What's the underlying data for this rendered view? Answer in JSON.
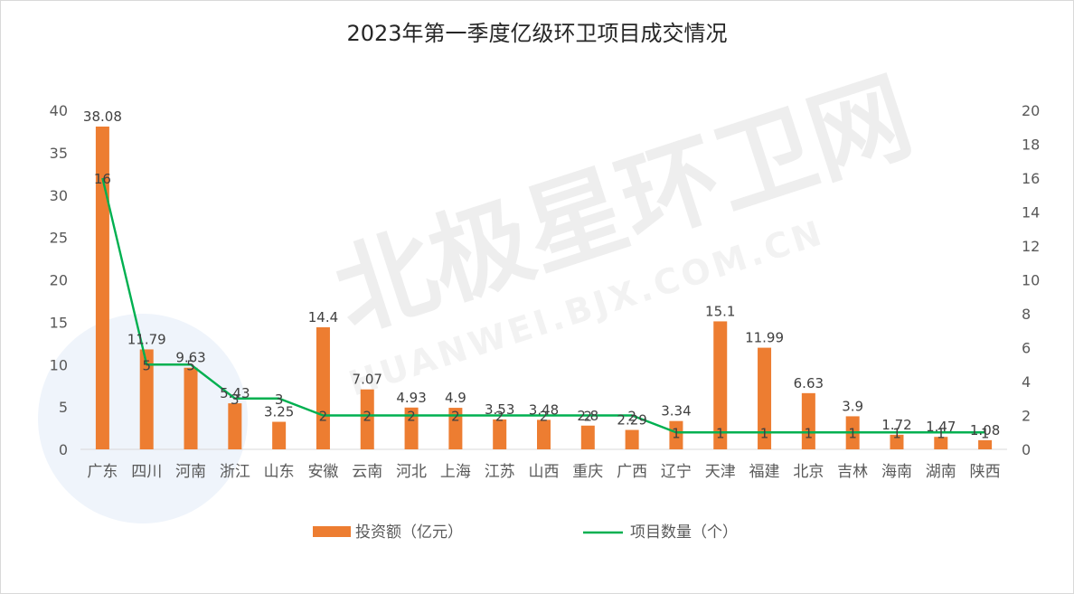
{
  "chart_data": {
    "type": "bar",
    "title": "2023年第一季度亿级环卫项目成交情况",
    "categories": [
      "广东",
      "四川",
      "河南",
      "浙江",
      "山东",
      "安徽",
      "云南",
      "河北",
      "上海",
      "江苏",
      "山西",
      "重庆",
      "广西",
      "辽宁",
      "天津",
      "福建",
      "北京",
      "吉林",
      "海南",
      "湖南",
      "陕西"
    ],
    "series": [
      {
        "name": "投资额（亿元）",
        "type": "bar",
        "axis": "left",
        "color": "#ED7D31",
        "values": [
          38.08,
          11.79,
          9.63,
          5.43,
          3.25,
          14.4,
          7.07,
          4.93,
          4.9,
          3.53,
          3.48,
          2.8,
          2.29,
          3.34,
          15.1,
          11.99,
          6.63,
          3.9,
          1.72,
          1.47,
          1.08
        ]
      },
      {
        "name": "项目数量（个）",
        "type": "line",
        "axis": "right",
        "color": "#00B050",
        "values": [
          16,
          5,
          5,
          3,
          3,
          2,
          2,
          2,
          2,
          2,
          2,
          2,
          2,
          1,
          1,
          1,
          1,
          1,
          1,
          1,
          1
        ]
      }
    ],
    "left_axis": {
      "ylim": [
        0,
        40
      ],
      "ticks": [
        "0",
        "5",
        "10",
        "15",
        "20",
        "25",
        "30",
        "35",
        "40"
      ]
    },
    "right_axis": {
      "ylim": [
        0,
        20
      ],
      "ticks": [
        "0",
        "2",
        "4",
        "6",
        "8",
        "10",
        "12",
        "14",
        "16",
        "18",
        "20"
      ]
    },
    "grid": false,
    "legend_position": "bottom",
    "watermark": {
      "main": "北极星环卫网",
      "domain": "HUANWEI.BJX.COM.CN"
    }
  }
}
